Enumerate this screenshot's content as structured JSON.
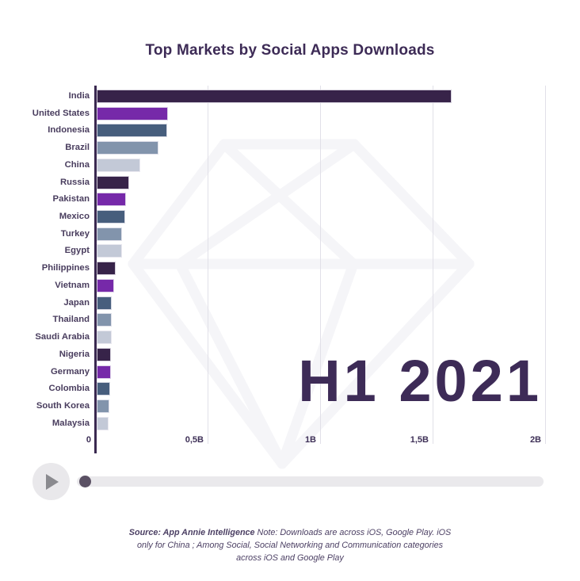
{
  "title": "Top Markets by Social Apps Downloads",
  "period_label": "H1 2021",
  "chart_data": {
    "type": "bar",
    "orientation": "horizontal",
    "title": "Top Markets by Social Apps Downloads",
    "categories": [
      "India",
      "United States",
      "Indonesia",
      "Brazil",
      "China",
      "Russia",
      "Pakistan",
      "Mexico",
      "Turkey",
      "Egypt",
      "Philippines",
      "Vietnam",
      "Japan",
      "Thailand",
      "Saudi Arabia",
      "Nigeria",
      "Germany",
      "Colombia",
      "South Korea",
      "Malaysia"
    ],
    "values_billions": [
      1.58,
      0.32,
      0.315,
      0.275,
      0.197,
      0.147,
      0.131,
      0.129,
      0.115,
      0.114,
      0.088,
      0.08,
      0.07,
      0.068,
      0.068,
      0.064,
      0.064,
      0.063,
      0.059,
      0.056
    ],
    "unit": "billions of downloads",
    "xlim": [
      0,
      2
    ],
    "x_ticks": [
      {
        "value": 0,
        "label": "0"
      },
      {
        "value": 0.5,
        "label": "0,5B"
      },
      {
        "value": 1,
        "label": "1B"
      },
      {
        "value": 1.5,
        "label": "1,5B"
      },
      {
        "value": 2,
        "label": "2B"
      }
    ],
    "grid": "vertical",
    "legend": null,
    "color_cycle": [
      "#372349",
      "#7629a9",
      "#475e7d",
      "#8294ac",
      "#c3c9d7"
    ]
  },
  "colors": {
    "title_text": "#3d2b56",
    "axis_line": "#3a2950",
    "gridline": "#e1e0e8",
    "tick_text": "#3e3057",
    "category_text": "#493d5e",
    "period_text": "#3d2b57",
    "watermark": "#f5f5f8",
    "play_circle": "#e9e8eb",
    "play_triangle": "#8a8a8f",
    "track": "#eae9ec",
    "handle": "#5b5164"
  },
  "player": {
    "play_icon": "play-triangle",
    "progress_percent": 0
  },
  "footer": {
    "source_bold": "Source: App Annie Intelligence",
    "line1_rest": " Note: Downloads are across iOS, Google Play. iOS",
    "line2": "only for China ; Among Social, Social Networking and Communication categories",
    "line3": "across iOS and Google Play"
  },
  "watermark_icon": "app-annie-diamond-logo"
}
